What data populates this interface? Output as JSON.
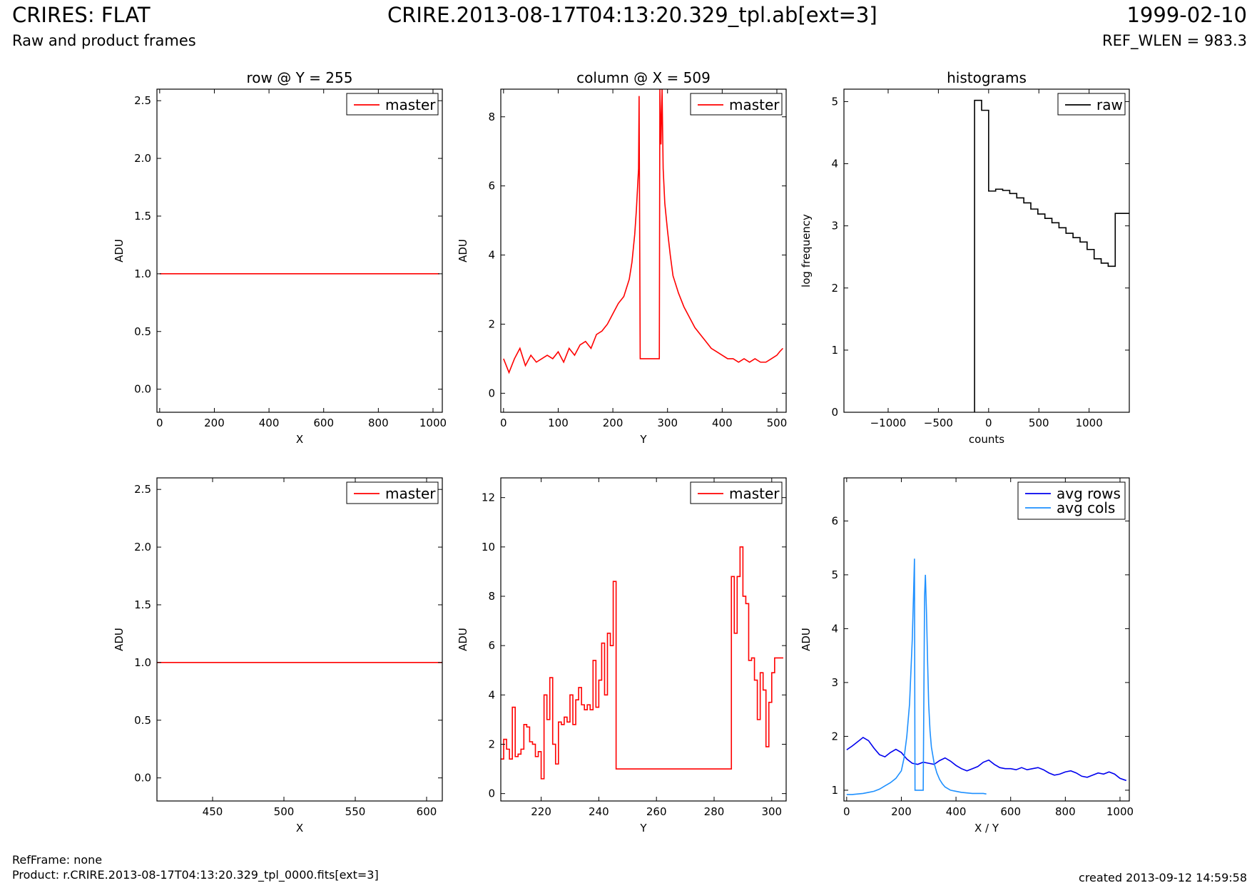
{
  "header": {
    "title": "CRIRES: FLAT",
    "subtitle": "Raw and product frames",
    "file": "CRIRE.2013-08-17T04:13:20.329_tpl.ab[ext=3]",
    "date": "1999-02-10",
    "ref_wlen": "REF_WLEN = 983.3"
  },
  "footer": {
    "refframe": "RefFrame: none",
    "product": "Product: r.CRIRE.2013-08-17T04:13:20.329_tpl_0000.fits[ext=3]",
    "created": "created 2013-09-12 14:59:58"
  },
  "colors": {
    "master": "#ff0000",
    "raw": "#000000",
    "avg_rows": "#0000ee",
    "avg_cols": "#1e90ff"
  },
  "chart_data": [
    {
      "type": "line",
      "title": "row @ Y = 255",
      "xlabel": "X",
      "ylabel": "ADU",
      "xlim": [
        -10,
        1034
      ],
      "ylim": [
        -0.2,
        2.6
      ],
      "xticks": [
        0,
        200,
        400,
        600,
        800,
        1000
      ],
      "yticks": [
        0.0,
        0.5,
        1.0,
        1.5,
        2.0,
        2.5
      ],
      "ytick_labels": [
        "0.0",
        "0.5",
        "1.0",
        "1.5",
        "2.0",
        "2.5"
      ],
      "legend": "top-right",
      "series": [
        {
          "name": "master",
          "color": "#ff0000",
          "x": [
            0,
            1023
          ],
          "y": [
            1.0,
            1.0
          ]
        }
      ]
    },
    {
      "type": "line",
      "title": "column @ X = 509",
      "xlabel": "Y",
      "ylabel": "ADU",
      "xlim": [
        -5,
        517
      ],
      "ylim": [
        -0.55,
        8.8
      ],
      "xticks": [
        0,
        100,
        200,
        300,
        400,
        500
      ],
      "yticks": [
        0,
        2,
        4,
        6,
        8
      ],
      "legend": "top-right",
      "series": [
        {
          "name": "master",
          "color": "#ff0000",
          "x": [
            0,
            10,
            20,
            30,
            40,
            50,
            60,
            70,
            80,
            90,
            100,
            110,
            120,
            130,
            140,
            150,
            160,
            170,
            180,
            190,
            200,
            210,
            220,
            230,
            235,
            240,
            243,
            245,
            247,
            248,
            250,
            260,
            270,
            280,
            285,
            286,
            288,
            290,
            292,
            295,
            300,
            305,
            310,
            320,
            330,
            340,
            350,
            360,
            370,
            380,
            390,
            400,
            410,
            420,
            430,
            440,
            450,
            460,
            470,
            480,
            490,
            500,
            505,
            511
          ],
          "y": [
            1.0,
            0.6,
            1.0,
            1.3,
            0.8,
            1.1,
            0.9,
            1.0,
            1.1,
            1.0,
            1.2,
            0.9,
            1.3,
            1.1,
            1.4,
            1.5,
            1.3,
            1.7,
            1.8,
            2.0,
            2.3,
            2.6,
            2.8,
            3.3,
            3.8,
            4.6,
            5.3,
            5.9,
            6.5,
            8.6,
            1.0,
            1.0,
            1.0,
            1.0,
            1.0,
            8.8,
            7.2,
            8.8,
            6.5,
            5.5,
            4.7,
            4.0,
            3.4,
            2.9,
            2.5,
            2.2,
            1.9,
            1.7,
            1.5,
            1.3,
            1.2,
            1.1,
            1.0,
            1.0,
            0.9,
            1.0,
            0.9,
            1.0,
            0.9,
            0.9,
            1.0,
            1.1,
            1.2,
            1.3
          ]
        }
      ]
    },
    {
      "type": "line",
      "title": "histograms",
      "xlabel": "counts",
      "ylabel": "log frequency",
      "xlim": [
        -1440,
        1400
      ],
      "ylim": [
        0,
        5.2
      ],
      "xticks": [
        -1000,
        -500,
        0,
        500,
        1000
      ],
      "xtick_labels": [
        "−1000",
        "−500",
        "0",
        "500",
        "1000"
      ],
      "yticks": [
        0,
        1,
        2,
        3,
        4,
        5
      ],
      "legend": "top-right",
      "series": [
        {
          "name": "raw",
          "color": "#000000",
          "step": true,
          "x": [
            -140,
            -140,
            -70,
            0,
            70,
            140,
            210,
            280,
            350,
            420,
            490,
            560,
            630,
            700,
            770,
            840,
            910,
            980,
            1050,
            1120,
            1190,
            1260,
            1330,
            1400
          ],
          "y": [
            0,
            5.02,
            4.86,
            3.56,
            3.59,
            3.57,
            3.52,
            3.45,
            3.37,
            3.27,
            3.19,
            3.12,
            3.05,
            2.97,
            2.88,
            2.81,
            2.74,
            2.62,
            2.47,
            2.4,
            2.35,
            3.2,
            3.2,
            3.2
          ]
        }
      ]
    },
    {
      "type": "line",
      "title": "",
      "xlabel": "X",
      "ylabel": "ADU",
      "xlim": [
        411,
        611
      ],
      "ylim": [
        -0.2,
        2.6
      ],
      "xticks": [
        450,
        500,
        550,
        600
      ],
      "yticks": [
        0.0,
        0.5,
        1.0,
        1.5,
        2.0,
        2.5
      ],
      "ytick_labels": [
        "0.0",
        "0.5",
        "1.0",
        "1.5",
        "2.0",
        "2.5"
      ],
      "legend": "top-right",
      "series": [
        {
          "name": "master",
          "color": "#ff0000",
          "x": [
            411,
            611
          ],
          "y": [
            1.0,
            1.0
          ]
        }
      ]
    },
    {
      "type": "line",
      "title": "",
      "xlabel": "Y",
      "ylabel": "ADU",
      "xlim": [
        206,
        305
      ],
      "ylim": [
        -0.3,
        12.8
      ],
      "xticks": [
        220,
        240,
        260,
        280,
        300
      ],
      "yticks": [
        0,
        2,
        4,
        6,
        8,
        10,
        12
      ],
      "legend": "top-right",
      "series": [
        {
          "name": "master",
          "color": "#ff0000",
          "step": true,
          "x": [
            206,
            207,
            208,
            209,
            210,
            211,
            212,
            213,
            214,
            215,
            216,
            217,
            218,
            219,
            220,
            221,
            222,
            223,
            224,
            225,
            226,
            227,
            228,
            229,
            230,
            231,
            232,
            233,
            234,
            235,
            236,
            237,
            238,
            239,
            240,
            241,
            242,
            243,
            244,
            245,
            246,
            247,
            248,
            286,
            287,
            288,
            289,
            290,
            291,
            292,
            293,
            294,
            295,
            296,
            297,
            298,
            299,
            300,
            301,
            302,
            303,
            304
          ],
          "y": [
            1.4,
            2.2,
            1.8,
            1.4,
            3.5,
            1.5,
            1.6,
            1.8,
            2.8,
            2.7,
            2.1,
            2.0,
            1.5,
            1.7,
            0.6,
            4.0,
            3.0,
            4.7,
            2.0,
            1.2,
            2.9,
            2.8,
            3.1,
            2.9,
            4.0,
            2.8,
            3.8,
            4.3,
            3.6,
            3.4,
            3.6,
            3.4,
            5.4,
            3.5,
            4.6,
            6.1,
            4.0,
            6.5,
            6.0,
            8.6,
            1.0,
            1.0,
            1.0,
            8.8,
            6.5,
            8.8,
            10.0,
            8.0,
            7.7,
            5.4,
            5.5,
            4.6,
            3.0,
            4.9,
            4.2,
            1.9,
            3.7,
            4.9,
            5.5,
            5.5,
            5.5,
            5.5
          ]
        }
      ]
    },
    {
      "type": "line",
      "title": "",
      "xlabel": "X / Y",
      "ylabel": "ADU",
      "xlim": [
        -10,
        1034
      ],
      "ylim": [
        0.8,
        6.8
      ],
      "xticks": [
        0,
        200,
        400,
        600,
        800,
        1000
      ],
      "yticks": [
        1,
        2,
        3,
        4,
        5,
        6
      ],
      "legend": "top-right",
      "series": [
        {
          "name": "avg rows",
          "color": "#0000ee",
          "x": [
            0,
            20,
            40,
            60,
            80,
            100,
            120,
            140,
            160,
            180,
            200,
            220,
            240,
            260,
            280,
            300,
            320,
            340,
            360,
            380,
            400,
            420,
            440,
            460,
            480,
            500,
            520,
            540,
            560,
            580,
            600,
            620,
            640,
            660,
            680,
            700,
            720,
            740,
            760,
            780,
            800,
            820,
            840,
            860,
            880,
            900,
            920,
            940,
            960,
            980,
            1000,
            1023
          ],
          "y": [
            1.75,
            1.82,
            1.9,
            1.98,
            1.92,
            1.78,
            1.66,
            1.62,
            1.7,
            1.76,
            1.7,
            1.58,
            1.5,
            1.48,
            1.52,
            1.5,
            1.48,
            1.55,
            1.6,
            1.54,
            1.46,
            1.4,
            1.36,
            1.4,
            1.44,
            1.52,
            1.56,
            1.48,
            1.42,
            1.4,
            1.4,
            1.38,
            1.42,
            1.38,
            1.4,
            1.42,
            1.38,
            1.32,
            1.28,
            1.3,
            1.34,
            1.36,
            1.32,
            1.26,
            1.24,
            1.28,
            1.32,
            1.3,
            1.34,
            1.3,
            1.22,
            1.18
          ]
        },
        {
          "name": "avg cols",
          "color": "#1e90ff",
          "x": [
            0,
            20,
            40,
            60,
            80,
            100,
            120,
            140,
            160,
            180,
            200,
            210,
            220,
            230,
            240,
            245,
            248,
            250,
            260,
            270,
            280,
            285,
            288,
            292,
            296,
            300,
            305,
            310,
            320,
            330,
            340,
            350,
            360,
            380,
            400,
            420,
            440,
            460,
            480,
            500,
            511
          ],
          "y": [
            0.92,
            0.92,
            0.93,
            0.94,
            0.96,
            0.98,
            1.02,
            1.08,
            1.14,
            1.22,
            1.36,
            1.6,
            2.0,
            2.6,
            3.8,
            4.7,
            5.3,
            1.0,
            1.0,
            1.0,
            1.0,
            4.6,
            5.0,
            4.3,
            3.4,
            2.6,
            2.1,
            1.8,
            1.5,
            1.32,
            1.2,
            1.12,
            1.06,
            1.0,
            0.98,
            0.96,
            0.95,
            0.94,
            0.94,
            0.94,
            0.93
          ]
        }
      ]
    }
  ]
}
